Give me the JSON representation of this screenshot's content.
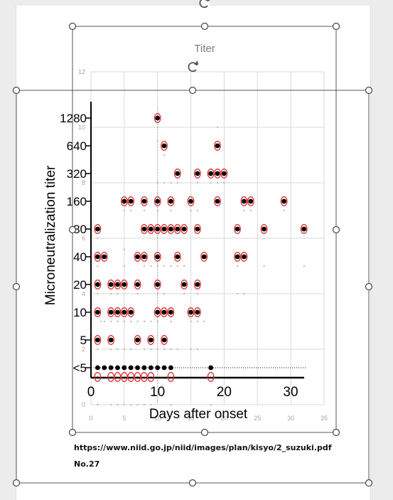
{
  "chart_title": "Titer",
  "source": {
    "url": "https://www.niid.go.jp/niid/images/plan/kisyo/2_suzuki.pdf",
    "number": "No.27"
  },
  "colors": {
    "handle_stroke": "#444444",
    "selection_box": "#555555",
    "red_circle": "#e03030",
    "dot": "#000000",
    "gridline": "#d9d9d9",
    "overlay_ticks": "#a6a6a6"
  },
  "icons": {
    "rotate_handle": "rotate-icon"
  },
  "chart_data": [
    {
      "type": "scatter",
      "title": "Titer",
      "xlabel": "",
      "ylabel": "",
      "xlim": [
        0,
        35
      ],
      "ylim": [
        0,
        12
      ],
      "x_ticks": [
        "0",
        "5",
        "10",
        "15",
        "20",
        "25",
        "30",
        "35"
      ],
      "y_ticks": [
        "0",
        "2",
        "4",
        "6",
        "8",
        "10",
        "12"
      ],
      "grid": true,
      "series": [
        {
          "x": [
            1,
            1,
            1.5,
            1,
            1,
            1,
            1,
            2,
            3,
            3,
            3,
            4,
            4,
            3,
            4,
            5,
            5,
            5,
            5,
            6,
            6,
            5,
            6,
            7,
            7,
            7,
            7,
            8,
            8,
            8,
            8,
            9,
            9,
            9,
            9,
            10,
            10,
            10,
            10,
            10,
            10,
            10,
            10,
            11,
            11,
            11,
            11,
            11,
            11,
            12,
            12,
            12,
            12,
            12,
            13,
            13,
            13,
            14,
            14,
            14,
            15,
            15,
            15,
            16,
            16,
            16,
            16,
            16,
            17,
            18,
            19,
            19,
            20,
            22,
            22,
            23,
            23,
            24,
            26,
            29,
            32,
            1,
            3,
            4,
            5,
            6,
            7,
            8,
            9,
            12,
            18
          ],
          "y": [
            1,
            2,
            3,
            4,
            5,
            6,
            0,
            3,
            1,
            2,
            3,
            2,
            3,
            4,
            4,
            2,
            3,
            5,
            5.6,
            2,
            3,
            7,
            7,
            1,
            3,
            4,
            4,
            2,
            3,
            5,
            7,
            1,
            2,
            3,
            5,
            2,
            3,
            4,
            5,
            6,
            7,
            8,
            9.5,
            2,
            4,
            5,
            8,
            9,
            9,
            2,
            3,
            5,
            7,
            8,
            2,
            5,
            8,
            4,
            4,
            5,
            2,
            3,
            7,
            2,
            3,
            4,
            7,
            8,
            3,
            8,
            10,
            8,
            8,
            4,
            5,
            4,
            7,
            7,
            5,
            7,
            5,
            0,
            0,
            0,
            0,
            0,
            0,
            0,
            0,
            0,
            0
          ]
        }
      ]
    },
    {
      "type": "scatter",
      "title": "",
      "xlabel": "Days after onset",
      "ylabel": "Microneutralization titer",
      "xlim": [
        0,
        32
      ],
      "x_ticks": [
        "0",
        "10",
        "20",
        "30"
      ],
      "y_ticks": [
        "<5",
        "5",
        "10",
        "20",
        "40",
        "80",
        "160",
        "320",
        "640",
        "1280"
      ],
      "grid": false,
      "series": [
        {
          "x": [
            1,
            3,
            4,
            5,
            6,
            7,
            8,
            9,
            12,
            18
          ],
          "y": [
            "<5",
            "<5",
            "<5",
            "<5",
            "<5",
            "<5",
            "<5",
            "<5",
            "<5",
            "<5"
          ]
        },
        {
          "x": [
            1,
            3,
            7,
            9,
            11
          ],
          "y": [
            "5",
            "5",
            "5",
            "5",
            "5"
          ]
        },
        {
          "x": [
            1,
            3,
            4,
            5,
            6,
            10,
            11,
            12,
            15,
            16
          ],
          "y": [
            "10",
            "10",
            "10",
            "10",
            "10",
            "10",
            "10",
            "10",
            "10",
            "10"
          ]
        },
        {
          "x": [
            1,
            3,
            4,
            5,
            7,
            10,
            14,
            16
          ],
          "y": [
            "20",
            "20",
            "20",
            "20",
            "20",
            "20",
            "20",
            "20"
          ]
        },
        {
          "x": [
            1,
            2,
            7,
            8,
            10,
            13,
            17,
            22,
            23
          ],
          "y": [
            "40",
            "40",
            "40",
            "40",
            "40",
            "40",
            "40",
            "40",
            "40"
          ]
        },
        {
          "x": [
            1,
            8,
            9,
            10,
            11,
            12,
            13,
            14,
            16,
            22,
            26,
            32
          ],
          "y": [
            "80",
            "80",
            "80",
            "80",
            "80",
            "80",
            "80",
            "80",
            "80",
            "80",
            "80",
            "80"
          ]
        },
        {
          "x": [
            5,
            6,
            8,
            10,
            12,
            15,
            19,
            23,
            24,
            29
          ],
          "y": [
            "160",
            "160",
            "160",
            "160",
            "160",
            "160",
            "160",
            "160",
            "160",
            "160"
          ]
        },
        {
          "x": [
            13,
            16,
            18,
            19,
            20
          ],
          "y": [
            "320",
            "320",
            "320",
            "320",
            "320"
          ]
        },
        {
          "x": [
            11,
            19
          ],
          "y": [
            "640",
            "640"
          ]
        },
        {
          "x": [
            10
          ],
          "y": [
            "1280"
          ]
        }
      ]
    }
  ]
}
